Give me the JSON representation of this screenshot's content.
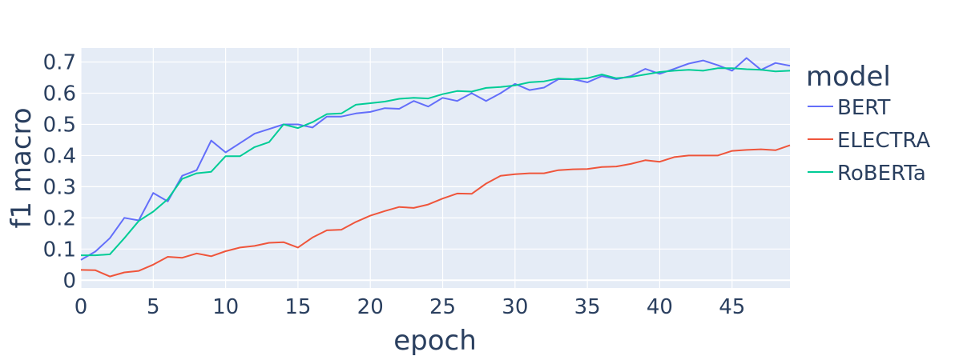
{
  "chart_data": {
    "type": "line",
    "title": "",
    "xlabel": "epoch",
    "ylabel": "f1 macro",
    "xlim": [
      0,
      49
    ],
    "ylim": [
      -0.025,
      0.745
    ],
    "xticks": [
      0,
      5,
      10,
      15,
      20,
      25,
      30,
      35,
      40,
      45
    ],
    "yticks": [
      0,
      0.1,
      0.2,
      0.3,
      0.4,
      0.5,
      0.6,
      0.7
    ],
    "ytick_labels": [
      "0",
      "0.1",
      "0.2",
      "0.3",
      "0.4",
      "0.5",
      "0.6",
      "0.7"
    ],
    "grid": true,
    "plot_bgcolor": "#e5ecf6",
    "legend": {
      "title": "model",
      "placement": "right"
    },
    "x": [
      0,
      1,
      2,
      3,
      4,
      5,
      6,
      7,
      8,
      9,
      10,
      11,
      12,
      13,
      14,
      15,
      16,
      17,
      18,
      19,
      20,
      21,
      22,
      23,
      24,
      25,
      26,
      27,
      28,
      29,
      30,
      31,
      32,
      33,
      34,
      35,
      36,
      37,
      38,
      39,
      40,
      41,
      42,
      43,
      44,
      45,
      46,
      47,
      48,
      49
    ],
    "series": [
      {
        "name": "BERT",
        "color": "#636efa",
        "values": [
          0.065,
          0.092,
          0.135,
          0.2,
          0.192,
          0.28,
          0.253,
          0.335,
          0.353,
          0.448,
          0.41,
          0.44,
          0.47,
          0.485,
          0.5,
          0.5,
          0.49,
          0.525,
          0.525,
          0.535,
          0.54,
          0.552,
          0.55,
          0.575,
          0.557,
          0.585,
          0.575,
          0.6,
          0.575,
          0.6,
          0.63,
          0.61,
          0.618,
          0.645,
          0.645,
          0.635,
          0.655,
          0.645,
          0.655,
          0.678,
          0.662,
          0.678,
          0.695,
          0.705,
          0.69,
          0.672,
          0.713,
          0.675,
          0.697,
          0.688
        ]
      },
      {
        "name": "ELECTRA",
        "color": "#ef553b",
        "values": [
          0.033,
          0.032,
          0.012,
          0.025,
          0.03,
          0.05,
          0.075,
          0.072,
          0.086,
          0.077,
          0.093,
          0.105,
          0.11,
          0.12,
          0.122,
          0.105,
          0.137,
          0.16,
          0.162,
          0.187,
          0.207,
          0.222,
          0.235,
          0.232,
          0.243,
          0.262,
          0.278,
          0.277,
          0.31,
          0.335,
          0.34,
          0.343,
          0.343,
          0.353,
          0.356,
          0.357,
          0.363,
          0.365,
          0.373,
          0.385,
          0.38,
          0.395,
          0.4,
          0.4,
          0.4,
          0.415,
          0.418,
          0.42,
          0.417,
          0.433
        ]
      },
      {
        "name": "RoBERTa",
        "color": "#00cc96",
        "values": [
          0.08,
          0.08,
          0.083,
          0.135,
          0.19,
          0.22,
          0.26,
          0.325,
          0.343,
          0.348,
          0.398,
          0.398,
          0.427,
          0.443,
          0.5,
          0.488,
          0.507,
          0.533,
          0.535,
          0.563,
          0.568,
          0.573,
          0.582,
          0.585,
          0.583,
          0.597,
          0.607,
          0.605,
          0.617,
          0.62,
          0.625,
          0.635,
          0.638,
          0.647,
          0.645,
          0.648,
          0.66,
          0.648,
          0.652,
          0.66,
          0.668,
          0.672,
          0.675,
          0.672,
          0.68,
          0.68,
          0.677,
          0.675,
          0.67,
          0.672
        ]
      }
    ]
  }
}
